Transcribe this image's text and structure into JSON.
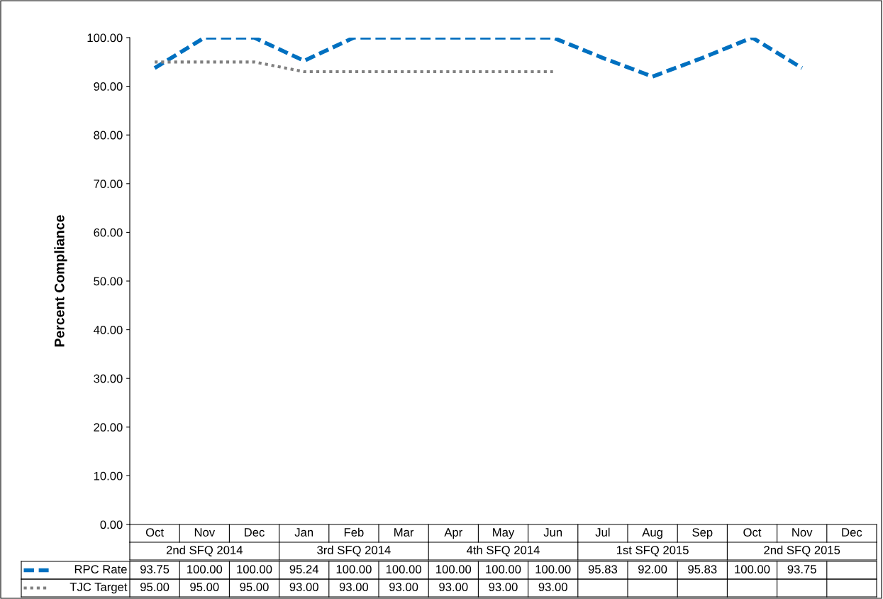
{
  "chart_data": {
    "type": "line",
    "ylabel": "Percent Compliance",
    "categories": [
      "Oct",
      "Nov",
      "Dec",
      "Jan",
      "Feb",
      "Mar",
      "Apr",
      "May",
      "Jun",
      "Jul",
      "Aug",
      "Sep",
      "Oct",
      "Nov",
      "Dec"
    ],
    "annotations": [
      "2nd SFQ 2014",
      "3rd SFQ 2014",
      "4th SFQ 2014",
      "1st SFQ 2015",
      "2nd SFQ 2015"
    ],
    "series": [
      {
        "name": "RPC Rate",
        "color": "#0070c0",
        "line_style": "dashed",
        "values": [
          93.75,
          100,
          100,
          95.24,
          100,
          100,
          100,
          100,
          100,
          95.83,
          92,
          95.83,
          100,
          93.75,
          null
        ],
        "value_labels": [
          "93.75",
          "100.00",
          "100.00",
          "95.24",
          "100.00",
          "100.00",
          "100.00",
          "100.00",
          "100.00",
          "95.83",
          "92.00",
          "95.83",
          "100.00",
          "93.75",
          null
        ]
      },
      {
        "name": "TJC Target",
        "color": "#808080",
        "line_style": "dotted",
        "values": [
          95,
          95,
          95,
          93,
          93,
          93,
          93,
          93,
          93,
          null,
          null,
          null,
          null,
          null,
          null
        ],
        "value_labels": [
          "95.00",
          "95.00",
          "95.00",
          "93.00",
          "93.00",
          "93.00",
          "93.00",
          "93.00",
          "93.00",
          null,
          null,
          null,
          null,
          null,
          null
        ]
      }
    ],
    "ylim": [
      0,
      100
    ],
    "yticks": [
      {
        "value": 0,
        "label": "0.00"
      },
      {
        "value": 10,
        "label": "10.00"
      },
      {
        "value": 20,
        "label": "20.00"
      },
      {
        "value": 30,
        "label": "30.00"
      },
      {
        "value": 40,
        "label": "40.00"
      },
      {
        "value": 50,
        "label": "50.00"
      },
      {
        "value": 60,
        "label": "60.00"
      },
      {
        "value": 70,
        "label": "70.00"
      },
      {
        "value": 80,
        "label": "80.00"
      },
      {
        "value": 90,
        "label": "90.00"
      },
      {
        "value": 100,
        "label": "100.00"
      }
    ],
    "grid": false,
    "legend": "bottom",
    "marker": "none"
  }
}
